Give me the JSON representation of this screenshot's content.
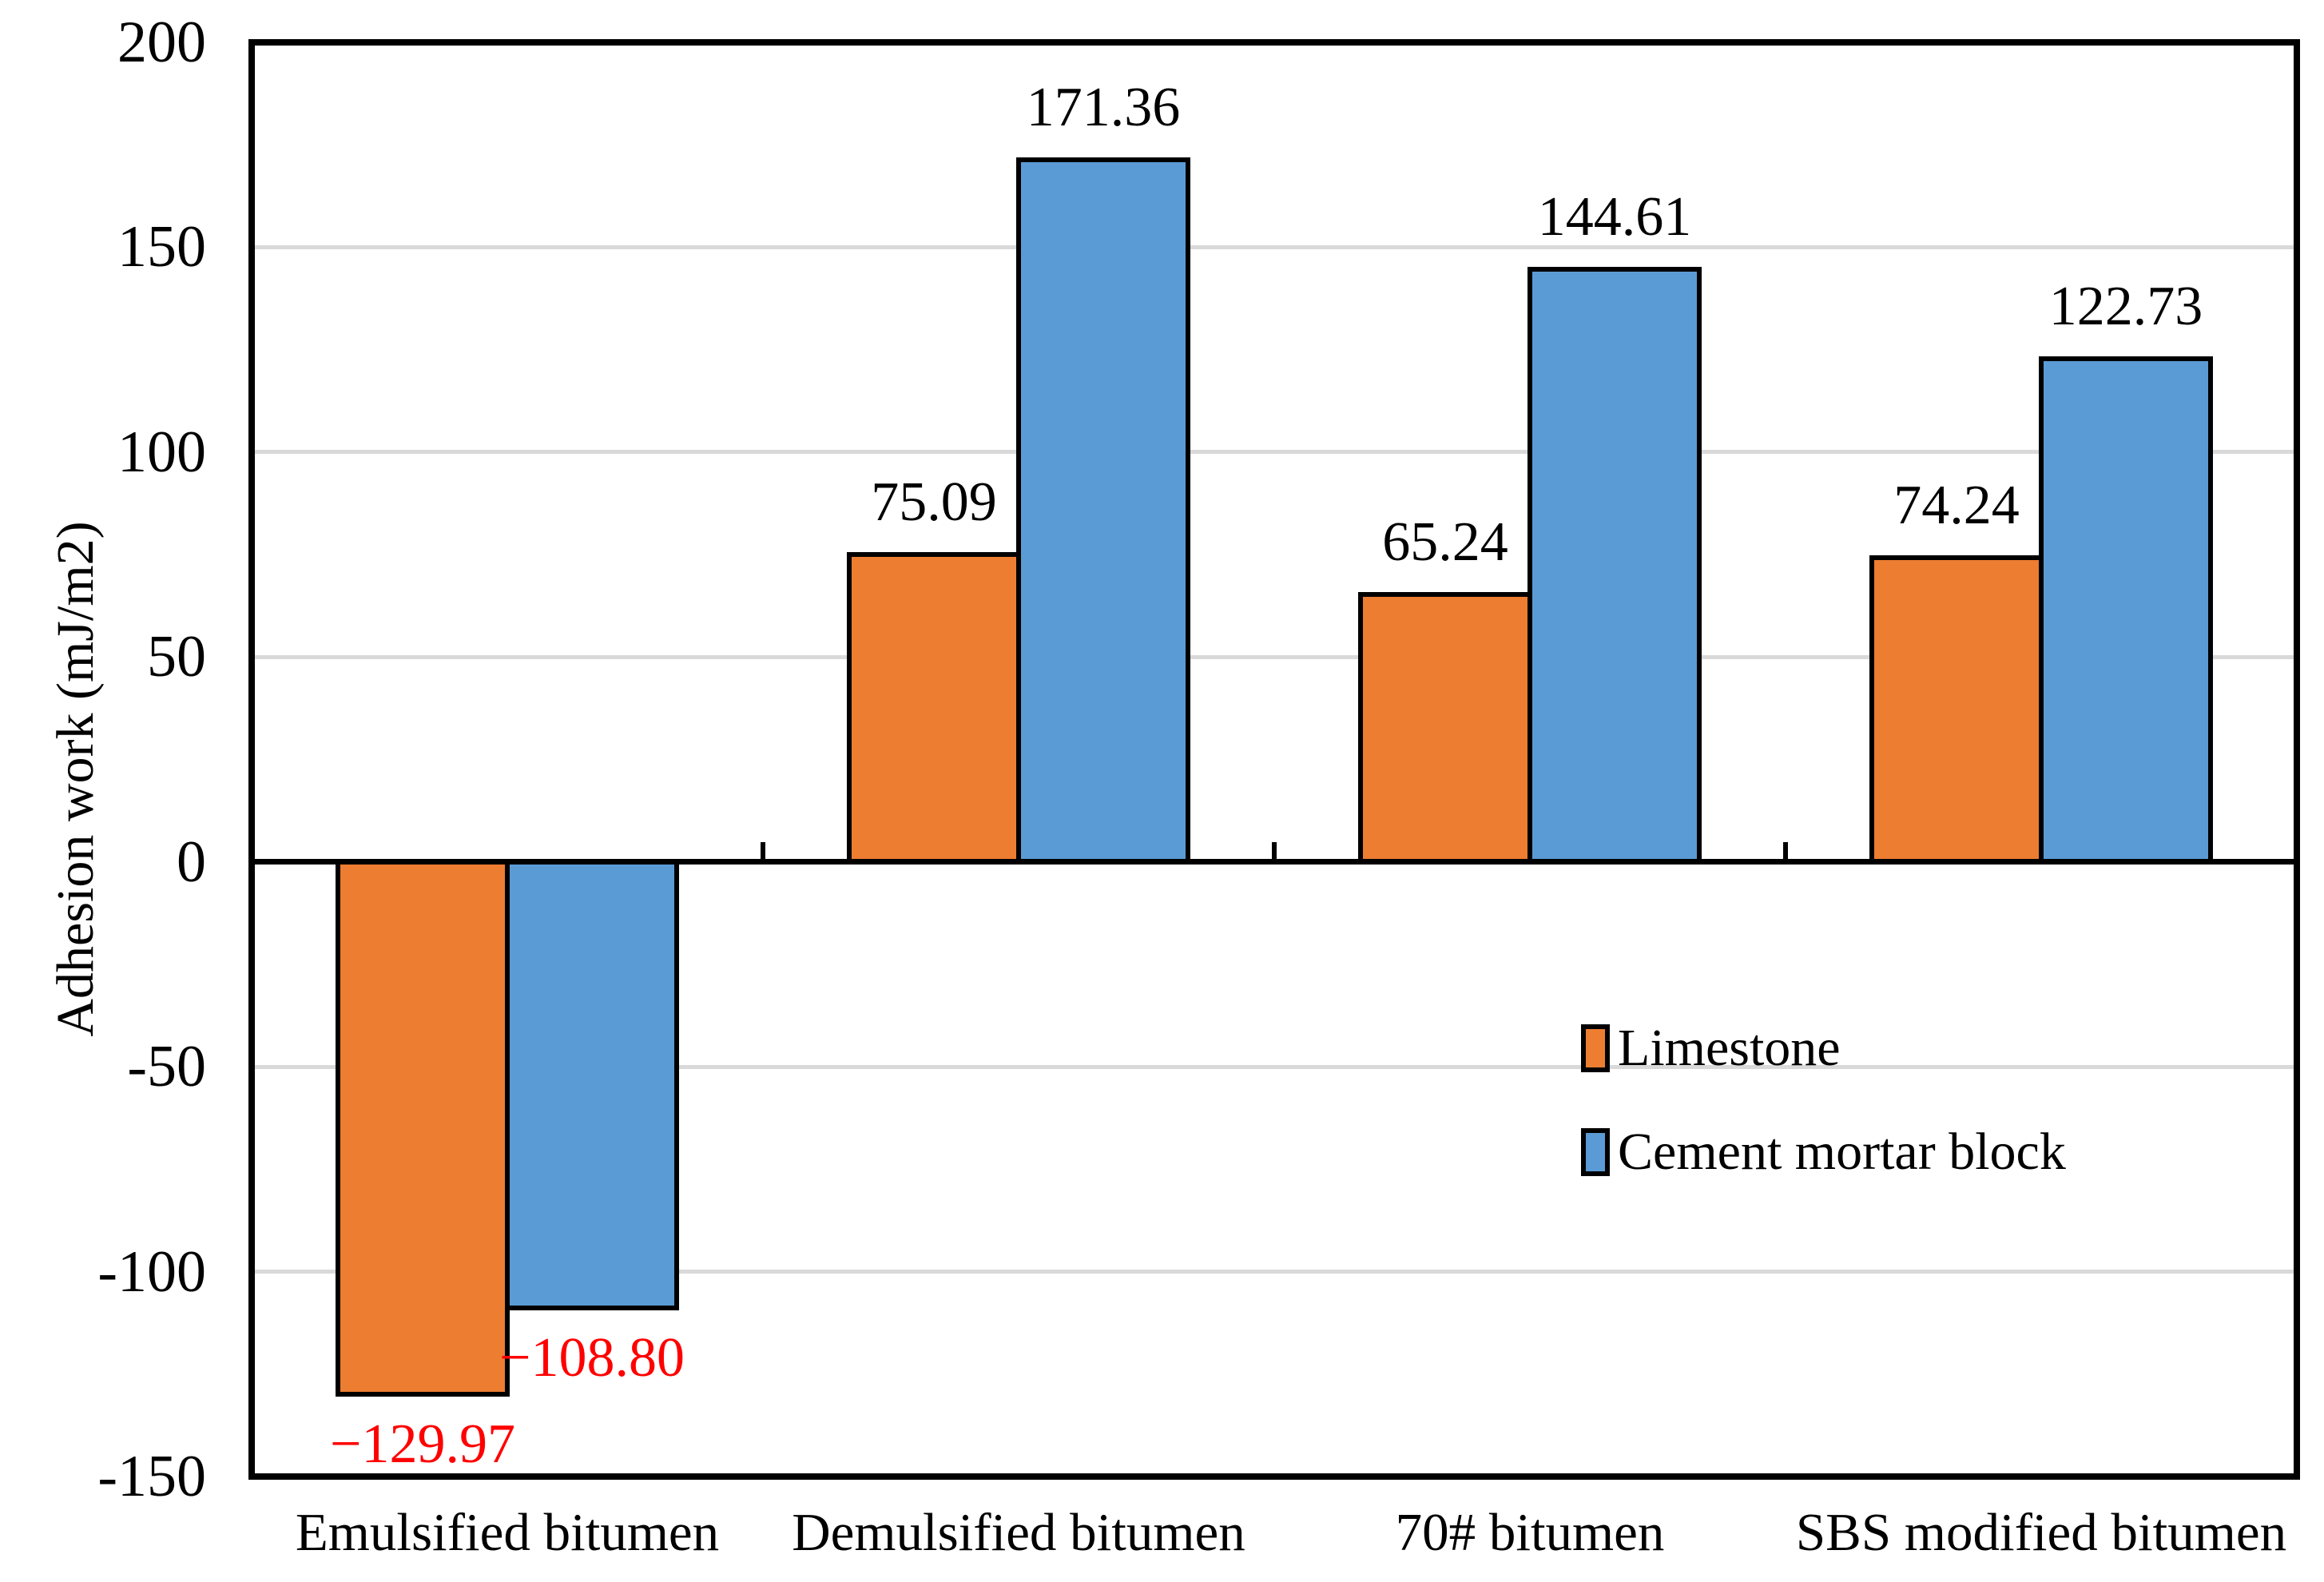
{
  "chart_data": {
    "type": "bar",
    "title": "",
    "ylabel": "Adhesion work (mJ/m2)",
    "xlabel": "",
    "ylim": [
      -150,
      200
    ],
    "ytick_interval": 50,
    "yticks": [
      {
        "label": "200",
        "value": 200
      },
      {
        "label": "150",
        "value": 150
      },
      {
        "label": "100",
        "value": 100
      },
      {
        "label": "50",
        "value": 50
      },
      {
        "label": "0",
        "value": 0
      },
      {
        "label": "-50",
        "value": -50
      },
      {
        "label": "-100",
        "value": -100
      },
      {
        "label": "-150",
        "value": -150
      }
    ],
    "gridline_values": [
      150,
      100,
      50,
      -50,
      -100
    ],
    "grid_on": true,
    "grid_color": "#D9D9D9",
    "axis_color": "#000000",
    "negative_label_color": "#FF0000",
    "categories": [
      "Emulsified bitumen",
      "Demulsified bitumen",
      "70# bitumen",
      "SBS modified bitumen"
    ],
    "series": [
      {
        "name": "Limestone",
        "color": "#ED7D31",
        "values": [
          -129.97,
          75.09,
          65.24,
          74.24
        ],
        "labels": [
          "−129.97",
          "75.09",
          "65.24",
          "74.24"
        ],
        "label_colors": [
          "#FF0000",
          "#000000",
          "#000000",
          "#000000"
        ]
      },
      {
        "name": "Cement mortar block",
        "color": "#5B9BD5",
        "values": [
          -108.8,
          171.36,
          144.61,
          122.73
        ],
        "labels": [
          "−108.80",
          "171.36",
          "144.61",
          "122.73"
        ],
        "label_colors": [
          "#FF0000",
          "#000000",
          "#000000",
          "#000000"
        ]
      }
    ],
    "legend_position": "center-right"
  }
}
